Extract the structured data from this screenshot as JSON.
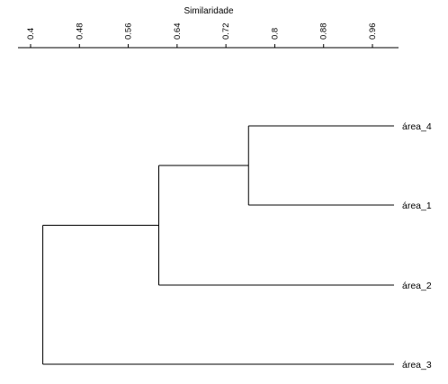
{
  "chart_data": {
    "type": "dendrogram",
    "xlabel": "Similaridade",
    "axis_position": "top",
    "xlim": [
      0.37,
      1.0
    ],
    "ticks": [
      0.4,
      0.48,
      0.56,
      0.64,
      0.72,
      0.8,
      0.88,
      0.96
    ],
    "tick_labels": [
      "0.4",
      "0.48",
      "0.56",
      "0.64",
      "0.72",
      "0.8",
      "0.88",
      "0.96"
    ],
    "leaf_value": 1.0,
    "leaves": [
      "área_4",
      "área_1",
      "área_2",
      "área_3"
    ],
    "merges": [
      {
        "id": "n1",
        "children": [
          "área_4",
          "área_1"
        ],
        "similarity": 0.757
      },
      {
        "id": "n2",
        "children": [
          "n1",
          "área_2"
        ],
        "similarity": 0.61
      },
      {
        "id": "n3",
        "children": [
          "n2",
          "área_3"
        ],
        "similarity": 0.42
      }
    ],
    "line_color": "#000000",
    "grid": false
  }
}
